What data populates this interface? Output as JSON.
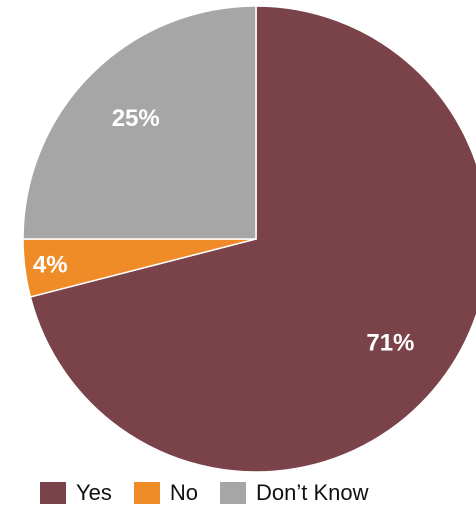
{
  "chart_data": {
    "type": "pie",
    "title": "",
    "slices": [
      {
        "label": "Yes",
        "value": 71,
        "value_label": "71%",
        "color": "#7a434a"
      },
      {
        "label": "No",
        "value": 4,
        "value_label": "4%",
        "color": "#f08c28"
      },
      {
        "label": "Don’t Know",
        "value": 25,
        "value_label": "25%",
        "color": "#a6a6a6"
      }
    ],
    "start": "12 o'clock",
    "direction": "clockwise",
    "legend": {
      "placement": "bottom",
      "entries": [
        "Yes",
        "No",
        "Don’t Know"
      ]
    }
  }
}
